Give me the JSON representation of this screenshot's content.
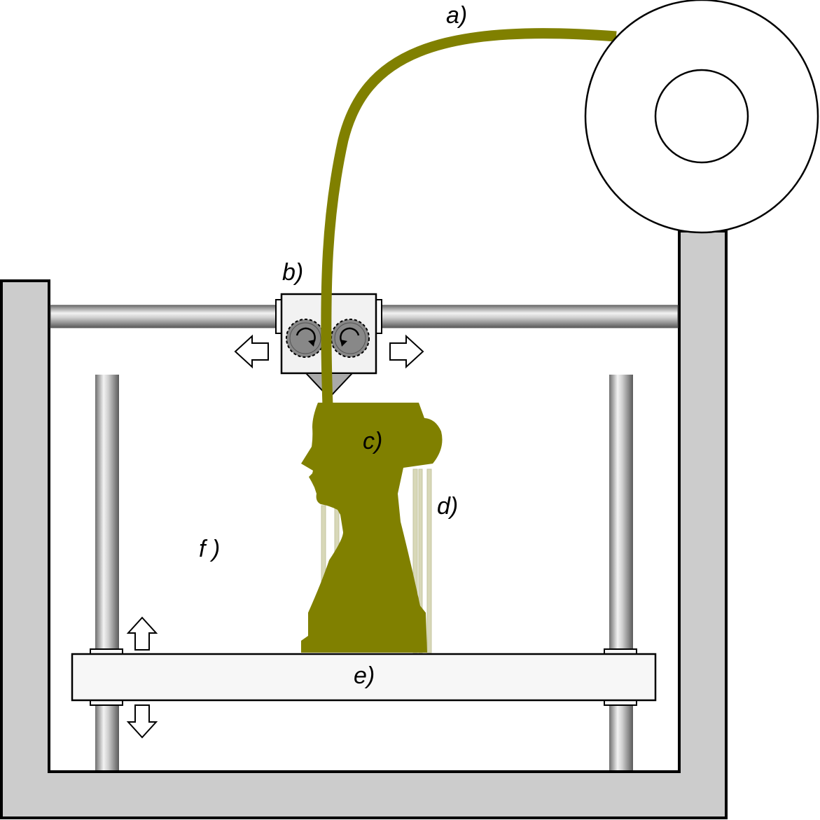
{
  "labels": {
    "a": "a)",
    "b": "b)",
    "c": "c)",
    "d": "d)",
    "e": "e)",
    "f": "f )"
  },
  "colors": {
    "frame": "#cccccc",
    "filament": "#808000",
    "support": "#d8d8b8",
    "bed": "#f7f7f7",
    "gear": "#888888",
    "nozzle": "#aaaaaa",
    "outline": "#000000"
  }
}
